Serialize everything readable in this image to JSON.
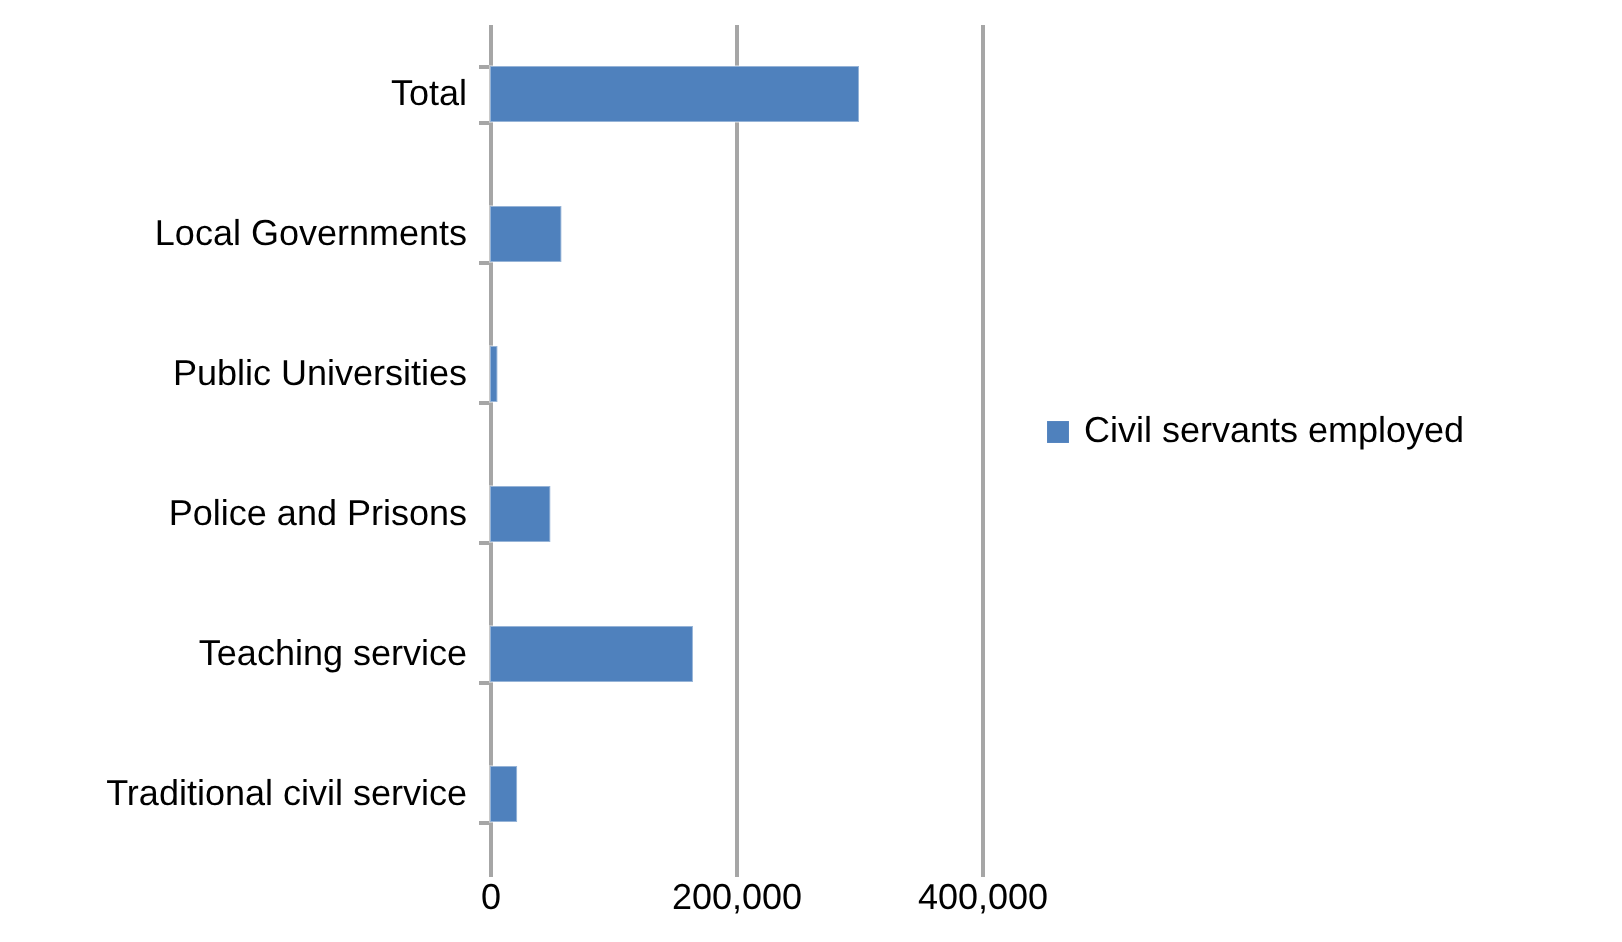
{
  "chart_data": {
    "type": "bar",
    "orientation": "horizontal",
    "categories": [
      "Total",
      "Local Governments",
      "Public Universities",
      "Police and Prisons",
      "Teaching service",
      "Traditional civil service"
    ],
    "series": [
      {
        "name": "Civil servants employed",
        "color": "#4f81bd",
        "values": [
          300000,
          58000,
          6000,
          49000,
          165000,
          22000
        ]
      }
    ],
    "xlim": [
      0,
      400000
    ],
    "xticks": [
      {
        "value": 0,
        "label": "0"
      },
      {
        "value": 200000,
        "label": "200,000"
      },
      {
        "value": 400000,
        "label": "400,000"
      }
    ],
    "grid": "x",
    "legend": "right"
  }
}
